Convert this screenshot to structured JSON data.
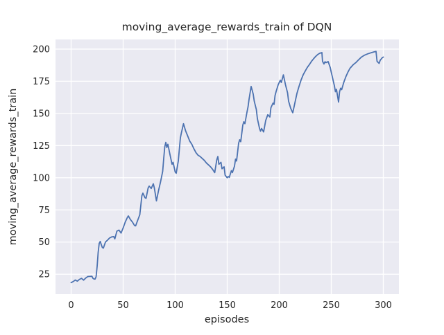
{
  "chart_data": {
    "type": "line",
    "title": "moving_average_rewards_train of DQN",
    "xlabel": "episodes",
    "ylabel": "moving_average_rewards_train",
    "xlim": [
      -15,
      315
    ],
    "ylim": [
      9.5,
      207.5
    ],
    "x_ticks": [
      0,
      50,
      100,
      150,
      200,
      250,
      300
    ],
    "y_ticks": [
      25,
      50,
      75,
      100,
      125,
      150,
      175,
      200
    ],
    "grid": true,
    "grid_style": "seaborn-darkgrid",
    "legend": null,
    "series": [
      {
        "name": "moving_average_rewards_train",
        "color": "#4c72b0",
        "points": [
          [
            0,
            18.5
          ],
          [
            2,
            19.3
          ],
          [
            4,
            20.5
          ],
          [
            6,
            19.6
          ],
          [
            8,
            21.0
          ],
          [
            10,
            21.8
          ],
          [
            12,
            20.4
          ],
          [
            14,
            22.0
          ],
          [
            16,
            23.2
          ],
          [
            18,
            23.3
          ],
          [
            20,
            23.4
          ],
          [
            21,
            21.8
          ],
          [
            22,
            21.3
          ],
          [
            23,
            21.2
          ],
          [
            24,
            23.0
          ],
          [
            25,
            31.0
          ],
          [
            26,
            42.0
          ],
          [
            27,
            49.0
          ],
          [
            28,
            50.5
          ],
          [
            29,
            48.0
          ],
          [
            30,
            45.8
          ],
          [
            31,
            45.3
          ],
          [
            33,
            50.0
          ],
          [
            35,
            51.5
          ],
          [
            37,
            53.2
          ],
          [
            39,
            54.0
          ],
          [
            41,
            54.2
          ],
          [
            42,
            52.5
          ],
          [
            44,
            58.5
          ],
          [
            46,
            59.3
          ],
          [
            48,
            57.0
          ],
          [
            50,
            61.0
          ],
          [
            52,
            65.5
          ],
          [
            54,
            69.0
          ],
          [
            55,
            70.3
          ],
          [
            57,
            67.5
          ],
          [
            59,
            65.5
          ],
          [
            61,
            62.8
          ],
          [
            62,
            62.6
          ],
          [
            64,
            67.0
          ],
          [
            66,
            71.2
          ],
          [
            68,
            86.0
          ],
          [
            69,
            88.0
          ],
          [
            71,
            84.5
          ],
          [
            72,
            84.0
          ],
          [
            74,
            92.0
          ],
          [
            75,
            93.5
          ],
          [
            77,
            91.7
          ],
          [
            79,
            95.3
          ],
          [
            80,
            92.0
          ],
          [
            82,
            82.0
          ],
          [
            84,
            90.0
          ],
          [
            86,
            97.0
          ],
          [
            88,
            105.0
          ],
          [
            89,
            115.0
          ],
          [
            90,
            124.0
          ],
          [
            91,
            127.5
          ],
          [
            92,
            123.5
          ],
          [
            93,
            126.0
          ],
          [
            95,
            118.0
          ],
          [
            97,
            110.5
          ],
          [
            98,
            112.0
          ],
          [
            100,
            104.5
          ],
          [
            101,
            103.5
          ],
          [
            103,
            113.0
          ],
          [
            105,
            131.0
          ],
          [
            106,
            135.0
          ],
          [
            108,
            142.0
          ],
          [
            110,
            136.5
          ],
          [
            112,
            132.5
          ],
          [
            114,
            128.5
          ],
          [
            116,
            126.0
          ],
          [
            118,
            122.5
          ],
          [
            120,
            119.5
          ],
          [
            122,
            117.5
          ],
          [
            124,
            116.5
          ],
          [
            126,
            115.0
          ],
          [
            128,
            113.5
          ],
          [
            130,
            111.5
          ],
          [
            132,
            110.0
          ],
          [
            134,
            108.5
          ],
          [
            136,
            106.5
          ],
          [
            138,
            104.0
          ],
          [
            140,
            114.0
          ],
          [
            141,
            116.5
          ],
          [
            142,
            110.5
          ],
          [
            144,
            112.0
          ],
          [
            145,
            107.0
          ],
          [
            147,
            108.5
          ],
          [
            148,
            102.0
          ],
          [
            150,
            100.0
          ],
          [
            151,
            101.0
          ],
          [
            152,
            100.3
          ],
          [
            154,
            105.5
          ],
          [
            155,
            104.0
          ],
          [
            157,
            109.0
          ],
          [
            158,
            114.5
          ],
          [
            159,
            113.0
          ],
          [
            161,
            127.0
          ],
          [
            162,
            129.5
          ],
          [
            163,
            128.0
          ],
          [
            165,
            141.0
          ],
          [
            166,
            143.5
          ],
          [
            167,
            142.0
          ],
          [
            169,
            151.0
          ],
          [
            170,
            155.0
          ],
          [
            171,
            161.0
          ],
          [
            172,
            166.0
          ],
          [
            173,
            171.0
          ],
          [
            175,
            165.0
          ],
          [
            176,
            159.5
          ],
          [
            178,
            153.0
          ],
          [
            179,
            146.0
          ],
          [
            181,
            138.5
          ],
          [
            182,
            136.2
          ],
          [
            183,
            138.3
          ],
          [
            185,
            135.6
          ],
          [
            187,
            144.5
          ],
          [
            189,
            149.0
          ],
          [
            191,
            147.2
          ],
          [
            192,
            154.4
          ],
          [
            194,
            158.0
          ],
          [
            195,
            157.0
          ],
          [
            196,
            164.0
          ],
          [
            197,
            167.0
          ],
          [
            199,
            172.3
          ],
          [
            201,
            175.8
          ],
          [
            202,
            174.1
          ],
          [
            204,
            180.0
          ],
          [
            206,
            172.3
          ],
          [
            208,
            166.0
          ],
          [
            209,
            159.5
          ],
          [
            211,
            154.0
          ],
          [
            213,
            150.5
          ],
          [
            215,
            158.0
          ],
          [
            217,
            165.5
          ],
          [
            219,
            171.0
          ],
          [
            221,
            176.0
          ],
          [
            223,
            180.0
          ],
          [
            225,
            183.0
          ],
          [
            227,
            185.8
          ],
          [
            229,
            188.0
          ],
          [
            231,
            190.5
          ],
          [
            233,
            192.5
          ],
          [
            235,
            194.3
          ],
          [
            237,
            195.8
          ],
          [
            239,
            196.8
          ],
          [
            241,
            197.3
          ],
          [
            241.6,
            190.5
          ],
          [
            243,
            188.4
          ],
          [
            244,
            190.2
          ],
          [
            245,
            189.5
          ],
          [
            247,
            190.3
          ],
          [
            249,
            185.7
          ],
          [
            250,
            182.0
          ],
          [
            251,
            178.5
          ],
          [
            253,
            171.5
          ],
          [
            254,
            166.9
          ],
          [
            255,
            168.7
          ],
          [
            257,
            158.8
          ],
          [
            258,
            166.9
          ],
          [
            259,
            169.6
          ],
          [
            260,
            168.5
          ],
          [
            262,
            174.1
          ],
          [
            264,
            178.5
          ],
          [
            266,
            182.1
          ],
          [
            268,
            185.1
          ],
          [
            271,
            187.8
          ],
          [
            274,
            189.8
          ],
          [
            276,
            191.5
          ],
          [
            279,
            193.8
          ],
          [
            282,
            195.3
          ],
          [
            285,
            196.3
          ],
          [
            288,
            197.1
          ],
          [
            291,
            197.8
          ],
          [
            293,
            198.2
          ],
          [
            294,
            190.5
          ],
          [
            296,
            188.9
          ],
          [
            297,
            191.3
          ],
          [
            299,
            193.3
          ],
          [
            300,
            193.8
          ]
        ]
      }
    ],
    "colors": {
      "line": "#4c72b0",
      "plot_background": "#eaeaf2",
      "grid": "#ffffff",
      "figure_background": "#ffffff",
      "text": "#262626"
    }
  }
}
